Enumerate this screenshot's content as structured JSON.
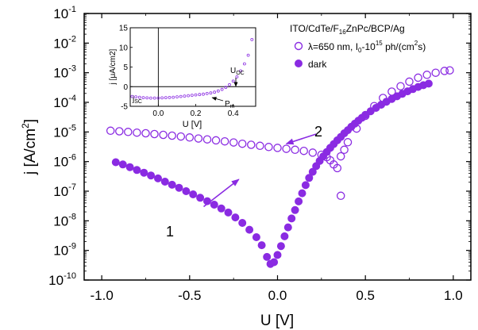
{
  "chart_data": {
    "type": "scatter",
    "xlabel": "U [V]",
    "ylabel": "j [A/cm2]",
    "xlim": [
      -1.1,
      1.1
    ],
    "ylim_log10": [
      -10,
      -1
    ],
    "y_scale": "log",
    "x_ticks": [
      -1.0,
      -0.5,
      0.0,
      0.5,
      1.0
    ],
    "x_tick_labels": [
      "-1.0",
      "-0.5",
      "0.0",
      "0.5",
      "1.0"
    ],
    "y_tick_exponents": [
      -10,
      -9,
      -8,
      -7,
      -6,
      -5,
      -4,
      -3,
      -2,
      -1
    ],
    "legend_placement": "top-right",
    "legend_title": "ITO/CdTe/F16ZnPc/BCP/Ag",
    "color": "#8a2be2",
    "series": [
      {
        "name": "λ=650 nm, I0-10^15 ph/(cm2s)",
        "marker": "open-circle",
        "x": [
          -0.95,
          -0.9,
          -0.85,
          -0.8,
          -0.75,
          -0.7,
          -0.65,
          -0.6,
          -0.55,
          -0.5,
          -0.45,
          -0.4,
          -0.35,
          -0.3,
          -0.25,
          -0.2,
          -0.15,
          -0.1,
          -0.05,
          0.0,
          0.05,
          0.1,
          0.15,
          0.2,
          0.25,
          0.28,
          0.3,
          0.32,
          0.34,
          0.36,
          0.38,
          0.4,
          0.45,
          0.5,
          0.55,
          0.6,
          0.65,
          0.7,
          0.75,
          0.8,
          0.85,
          0.9,
          0.95,
          0.98
        ],
        "y": [
          1.1e-05,
          1.05e-05,
          1e-05,
          9.5e-06,
          9e-06,
          8.5e-06,
          8e-06,
          7.5e-06,
          7e-06,
          6.5e-06,
          6e-06,
          5.6e-06,
          5.2e-06,
          4.8e-06,
          4.4e-06,
          4e-06,
          3.7e-06,
          3.4e-06,
          3.1e-06,
          2.9e-06,
          2.7e-06,
          2.5e-06,
          2.3e-06,
          2e-06,
          1.7e-06,
          1.4e-06,
          1.1e-06,
          8e-07,
          6e-07,
          1.5e-06,
          2.5e-06,
          4.5e-06,
          1.3e-05,
          3.5e-05,
          7.5e-05,
          0.00014,
          0.00023,
          0.00035,
          0.0005,
          0.00068,
          0.00085,
          0.001,
          0.00115,
          0.0012
        ]
      },
      {
        "name": "",
        "marker": "open-circle",
        "x": [
          0.36
        ],
        "y": [
          7e-08
        ]
      },
      {
        "name": "dark",
        "marker": "filled-circle",
        "x": [
          -0.92,
          -0.88,
          -0.84,
          -0.8,
          -0.76,
          -0.72,
          -0.68,
          -0.64,
          -0.6,
          -0.56,
          -0.52,
          -0.48,
          -0.44,
          -0.4,
          -0.36,
          -0.32,
          -0.28,
          -0.24,
          -0.2,
          -0.16,
          -0.12,
          -0.09,
          -0.06,
          -0.04,
          -0.02,
          0.0,
          0.02,
          0.04,
          0.06,
          0.08,
          0.1,
          0.12,
          0.14,
          0.16,
          0.18,
          0.2,
          0.22,
          0.24,
          0.26,
          0.28,
          0.3,
          0.32,
          0.34,
          0.36,
          0.38,
          0.4,
          0.42,
          0.44,
          0.46,
          0.48,
          0.5,
          0.53,
          0.56,
          0.59,
          0.62,
          0.65,
          0.68,
          0.71,
          0.74,
          0.77,
          0.8,
          0.83,
          0.86
        ],
        "y": [
          9.5e-07,
          8e-07,
          6.5e-07,
          5.2e-07,
          4.2e-07,
          3.4e-07,
          2.7e-07,
          2.1e-07,
          1.65e-07,
          1.3e-07,
          1e-07,
          7.8e-08,
          6e-08,
          4.6e-08,
          3.5e-08,
          2.6e-08,
          1.9e-08,
          1.3e-08,
          8.5e-09,
          5e-09,
          2.8e-09,
          1.5e-09,
          6e-10,
          3.5e-10,
          4e-10,
          7e-10,
          1.4e-09,
          3e-09,
          6e-09,
          1.2e-08,
          2.3e-08,
          4.5e-08,
          8.5e-08,
          1.6e-07,
          2.8e-07,
          4.5e-07,
          7e-07,
          1.05e-06,
          1.5e-06,
          2.1e-06,
          2.9e-06,
          3.9e-06,
          5.2e-06,
          6.8e-06,
          9e-06,
          1.15e-05,
          1.5e-05,
          1.9e-05,
          2.4e-05,
          3e-05,
          3.8e-05,
          5e-05,
          6.5e-05,
          8.3e-05,
          0.000105,
          0.00013,
          0.00016,
          0.000195,
          0.000235,
          0.00028,
          0.00033,
          0.00038,
          0.00043
        ]
      }
    ],
    "annotations": [
      {
        "label": "1",
        "arrow_from": [
          -0.42,
          3e-08
        ],
        "arrow_to": [
          -0.22,
          2.5e-07
        ]
      },
      {
        "label": "2",
        "arrow_from": [
          0.22,
          8.5e-06
        ],
        "arrow_to": [
          0.05,
          4e-06
        ]
      }
    ],
    "inset": {
      "type": "scatter",
      "xlabel": "U [V]",
      "ylabel": "j [μA/cm2]",
      "xlim": [
        -0.15,
        0.52
      ],
      "ylim": [
        -5,
        15
      ],
      "x_ticks": [
        0.0,
        0.2,
        0.4
      ],
      "x_tick_labels": [
        "0.0",
        "0.2",
        "0.4"
      ],
      "y_ticks": [
        -5,
        0,
        5,
        10,
        15
      ],
      "y_tick_labels": [
        "-5",
        "0",
        "5",
        "10",
        "15"
      ],
      "x": [
        -0.14,
        -0.12,
        -0.1,
        -0.08,
        -0.06,
        -0.04,
        -0.02,
        0.0,
        0.02,
        0.04,
        0.06,
        0.08,
        0.1,
        0.12,
        0.14,
        0.16,
        0.18,
        0.2,
        0.22,
        0.24,
        0.26,
        0.28,
        0.3,
        0.32,
        0.34,
        0.36,
        0.38,
        0.4,
        0.42,
        0.44,
        0.46,
        0.48,
        0.5
      ],
      "y": [
        -2.5,
        -2.6,
        -2.7,
        -2.8,
        -2.85,
        -2.9,
        -2.9,
        -2.9,
        -2.85,
        -2.8,
        -2.75,
        -2.7,
        -2.6,
        -2.5,
        -2.4,
        -2.3,
        -2.2,
        -2.1,
        -2.0,
        -1.9,
        -1.75,
        -1.6,
        -1.4,
        -1.1,
        -0.7,
        -0.2,
        0.5,
        1.4,
        2.5,
        4.0,
        5.8,
        8.0,
        12.0
      ],
      "annotations": {
        "isc_main": "j",
        "isc_sub": "SC",
        "uoc_main": "U",
        "uoc_sub": "OC",
        "pm_main": "P",
        "pm_sub": "m"
      }
    }
  },
  "legend": {
    "title": {
      "a": "ITO/CdTe/F",
      "b": "16",
      "c": "ZnPc/BCP/Ag"
    },
    "entry1": {
      "a": "λ=650 nm, I",
      "b": "0",
      "c": "-10",
      "d": "15",
      "e": " ph/(cm",
      "f": "2",
      "g": "s)"
    },
    "entry2": "dark"
  },
  "labels": {
    "xlabel": "U [V]",
    "ylabel_a": "j [A/cm",
    "ylabel_b": "2",
    "ylabel_c": "]",
    "ytick_base": "10",
    "inset_xlabel": "U [V]",
    "inset_ylabel": "j [μA/cm2]",
    "arrow1": "1",
    "arrow2": "2"
  }
}
